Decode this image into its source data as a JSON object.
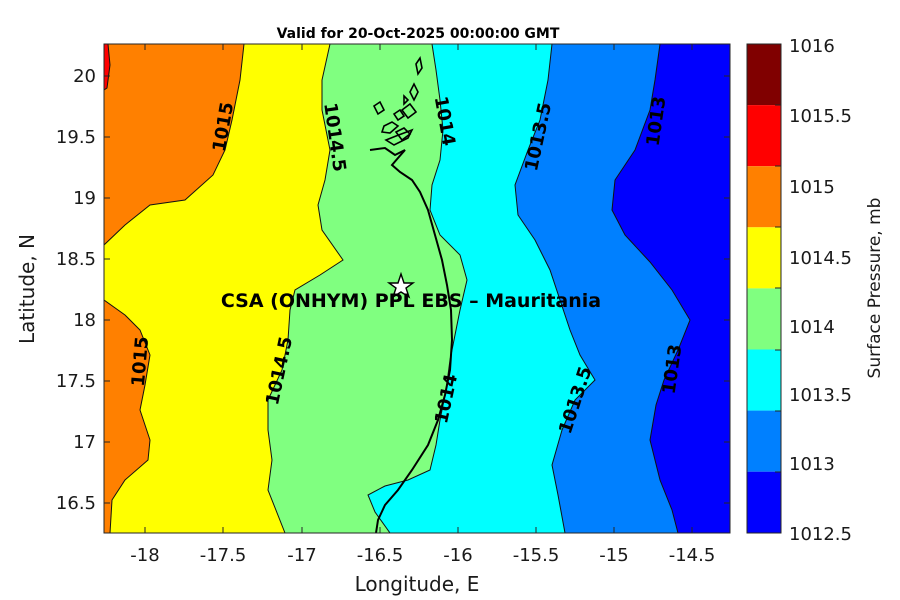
{
  "title": "Valid for 20-Oct-2025 00:00:00 GMT",
  "xlabel": "Longitude, E",
  "ylabel": "Latitude, N",
  "x_ticks": [
    "-18",
    "-17.5",
    "-17",
    "-16.5",
    "-16",
    "-15.5",
    "-15",
    "-14.5"
  ],
  "y_ticks": [
    "20",
    "19.5",
    "19",
    "18.5",
    "18",
    "17.5",
    "17",
    "16.5"
  ],
  "colorbar": {
    "label": "Surface Pressure, mb",
    "ticks": [
      "1016",
      "1015.5",
      "1015",
      "1014.5",
      "1014",
      "1013.5",
      "1013",
      "1012.5"
    ],
    "colors": [
      "#800000",
      "#ff0000",
      "#ff8000",
      "#ffff00",
      "#80ff80",
      "#00ffff",
      "#0080ff",
      "#0000ff"
    ]
  },
  "contour_labels": [
    "1015",
    "1014.5",
    "1014",
    "1013.5",
    "1013",
    "1015",
    "1014.5",
    "1014",
    "1013.5",
    "1013"
  ],
  "site": {
    "label": "CSA (ONHYM) PPL EBS  – Mauritania",
    "marker": "star-icon"
  },
  "chart_data": {
    "type": "heatmap",
    "variable": "Surface Pressure",
    "units": "mb",
    "xlim": [
      -18.25,
      -14.25
    ],
    "ylim": [
      16.25,
      20.25
    ],
    "levels": [
      1012.5,
      1013,
      1013.5,
      1014,
      1014.5,
      1015,
      1015.5,
      1016
    ],
    "site_location": {
      "lon": -16.33,
      "lat": 18.28
    },
    "gradient": "pressure decreases from west (~1015.3 mb) to east (~1012.7 mb)"
  }
}
